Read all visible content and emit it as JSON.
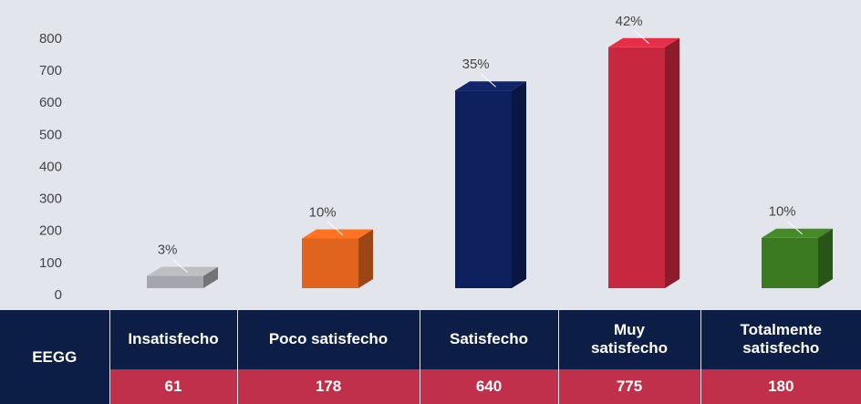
{
  "chart_data": {
    "type": "bar3d",
    "categories": [
      "Insatisfecho",
      "Poco satisfecho",
      "Satisfecho",
      "Muy satisfecho",
      "Totalmente satisfecho"
    ],
    "values": [
      61,
      178,
      640,
      775,
      180
    ],
    "percent_labels": [
      "3%",
      "10%",
      "35%",
      "42%",
      "10%"
    ],
    "colors": [
      "#a4a6aa",
      "#e0641e",
      "#0d1f5c",
      "#c8283f",
      "#3c7a22"
    ],
    "row_header": "EEGG",
    "ylim": [
      0,
      800
    ],
    "yticks": [
      0,
      100,
      200,
      300,
      400,
      500,
      600,
      700,
      800
    ],
    "grid": false
  }
}
